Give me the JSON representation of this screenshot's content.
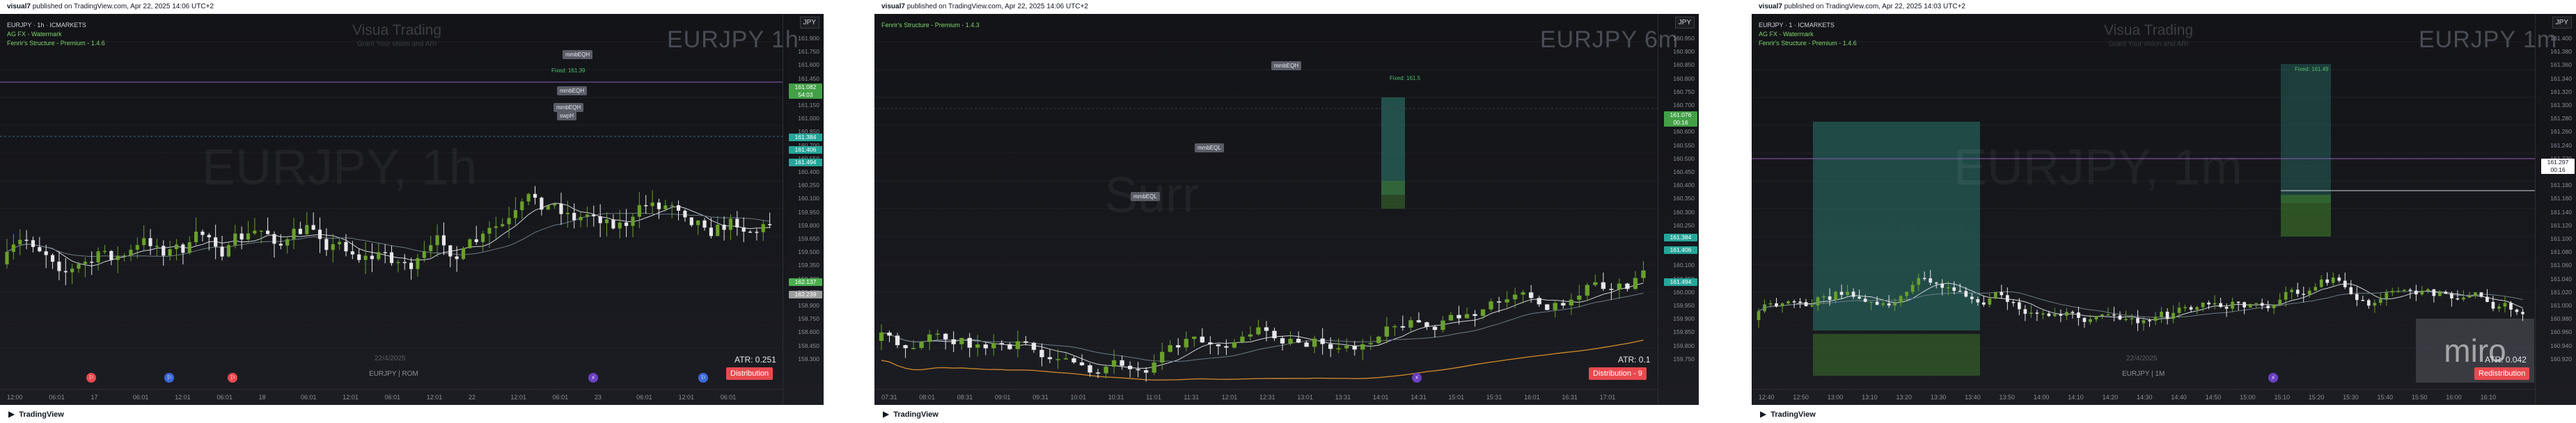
{
  "panels": [
    {
      "publish_author": "visual7",
      "publish_text": "published on TradingView.com, Apr 22, 2025 14:06 UTC+2",
      "legend_line1": "EURJPY · 1h · ICMARKETS",
      "legend_line2": "AG FX - Watermark",
      "legend_line3": "Fenrir's Structure - Premium - 1.4.6",
      "watermark_title": "Visua Trading",
      "watermark_sub": "Grant Your vision and ARI",
      "symbol": "EURJPY 1h",
      "big_watermark": "EURJPY, 1h",
      "currency": "JPY",
      "atr": "ATR: 0.251",
      "badge": "Distribution",
      "date": "22/4/2025",
      "sub_label": "EURJPY | ROM",
      "annotations": [
        "mmbEQH",
        "mmbEQH",
        "mmbEQH",
        "swpH"
      ],
      "tp_label": "Fixed: 161.39",
      "price_ticks": [
        "161.900",
        "161.750",
        "161.600",
        "161.450",
        "161.300",
        "161.150",
        "161.000",
        "160.850",
        "160.700",
        "160.550",
        "160.400",
        "160.250",
        "160.100",
        "159.950",
        "159.800",
        "159.650",
        "159.500",
        "159.350",
        "159.200",
        "159.050",
        "158.900",
        "158.750",
        "158.600",
        "158.450",
        "158.300"
      ],
      "price_tags": [
        {
          "text": "161.082",
          "sub": "54:03",
          "color": "#43a047"
        },
        {
          "text": "161.384",
          "color": "#26a69a"
        },
        {
          "text": "161.406",
          "color": "#26a69a"
        },
        {
          "text": "161.494",
          "color": "#26a69a"
        },
        {
          "text": "162.137",
          "color": "#4caf50"
        },
        {
          "text": "162.239",
          "color": "#9e9e9e"
        }
      ],
      "time_ticks": [
        "12:00",
        "06:01",
        "17",
        "06:01",
        "12:01",
        "06:01",
        "18",
        "06:01",
        "12:01",
        "06:01",
        "12:01",
        "22",
        "12:01",
        "06:01",
        "23",
        "06:01",
        "12:01",
        "06:01"
      ],
      "markers": [
        "red",
        "blue",
        "red",
        "purple",
        "blue"
      ]
    },
    {
      "publish_author": "visual7",
      "publish_text": "published on TradingView.com, Apr 22, 2025 14:06 UTC+2",
      "legend_line1": "Fenrir's Structure - Premium - 1.4.3",
      "legend_line2": "",
      "legend_line3": "",
      "watermark_title": "",
      "watermark_sub": "",
      "symbol": "EURJPY 6m",
      "big_watermark": "Surr",
      "currency": "JPY",
      "atr": "ATR: 0.1",
      "badge": "Distribution - 9",
      "date": "",
      "sub_label": "",
      "annotations": [
        "mmbEQH",
        "mmbEQL",
        "mmbEQL"
      ],
      "tp_label": "Fixed: 161.5",
      "price_ticks": [
        "160.950",
        "160.900",
        "160.850",
        "160.800",
        "160.750",
        "160.700",
        "160.650",
        "160.600",
        "160.550",
        "160.500",
        "160.450",
        "160.400",
        "160.350",
        "160.300",
        "160.250",
        "160.200",
        "160.150",
        "160.100",
        "160.050",
        "160.000",
        "159.950",
        "159.900",
        "159.850",
        "159.800",
        "159.750"
      ],
      "price_tags": [
        {
          "text": "161.076",
          "sub": "00:16",
          "color": "#43a047"
        },
        {
          "text": "161.384",
          "color": "#26a69a"
        },
        {
          "text": "161.406",
          "color": "#26a69a"
        },
        {
          "text": "161.494",
          "color": "#26a69a"
        }
      ],
      "time_ticks": [
        "07:31",
        "08:01",
        "08:31",
        "09:01",
        "09:31",
        "10:01",
        "10:31",
        "11:01",
        "11:31",
        "12:01",
        "12:31",
        "13:01",
        "13:31",
        "14:01",
        "14:31",
        "15:01",
        "15:31",
        "16:01",
        "16:31",
        "17:01"
      ],
      "markers": [
        "purple"
      ]
    },
    {
      "publish_author": "visual7",
      "publish_text": "published on TradingView.com, Apr 22, 2025 14:03 UTC+2",
      "legend_line1": "EURJPY · 1 · ICMARKETS",
      "legend_line2": "AG FX - Watermark",
      "legend_line3": "Fenrir's Structure - Premium - 1.4.6",
      "watermark_title": "Visua Trading",
      "watermark_sub": "Grant Your vision and ARI",
      "symbol": "EURJPY 1m",
      "big_watermark": "EURJPY, 1m",
      "currency": "JPY",
      "atr": "ATR: 0.042",
      "badge": "Redistribution",
      "date": "22/4/2025",
      "sub_label": "EURJPY | 1M",
      "annotations": [],
      "tp_label": "Fixed: 161.49",
      "price_ticks": [
        "161.400",
        "161.380",
        "161.360",
        "161.340",
        "161.320",
        "161.300",
        "161.280",
        "161.260",
        "161.240",
        "161.220",
        "161.200",
        "161.180",
        "161.160",
        "161.140",
        "161.120",
        "161.100",
        "161.080",
        "161.060",
        "161.040",
        "161.020",
        "161.000",
        "160.980",
        "160.960",
        "160.940",
        "160.920"
      ],
      "price_tags": [
        {
          "text": "161.297",
          "sub": "00:16",
          "color": "#ffffff"
        }
      ],
      "time_ticks": [
        "12:40",
        "12:50",
        "13:00",
        "13:10",
        "13:20",
        "13:30",
        "13:40",
        "13:50",
        "14:00",
        "14:10",
        "14:20",
        "14:30",
        "14:40",
        "14:50",
        "15:00",
        "15:10",
        "15:20",
        "15:30",
        "15:40",
        "15:50",
        "16:00",
        "16:10"
      ],
      "markers": [
        "purple"
      ],
      "miro": "miro"
    }
  ],
  "footer": {
    "logo_text": "TradingView"
  },
  "colors": {
    "bull": "#6aa02c",
    "bear": "#e8e8ea",
    "ma1": "#cfd2da",
    "ma2": "#6b7a86",
    "ma_orange": "#c7832a",
    "zone_teal": "#2f8a7a",
    "zone_green": "#3e7a2a"
  }
}
